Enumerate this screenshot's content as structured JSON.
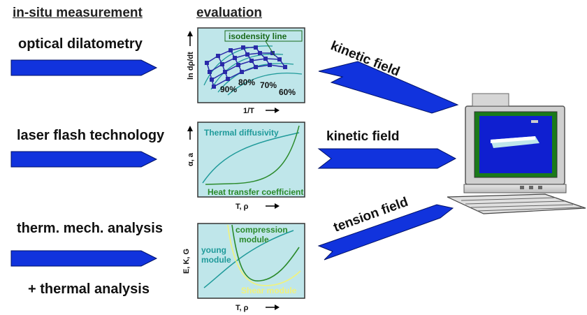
{
  "headers": {
    "measurement": "in-situ measurement",
    "evaluation": "evaluation"
  },
  "methods": [
    {
      "label": "optical dilatometry"
    },
    {
      "label": "laser flash technology"
    },
    {
      "label": "therm. mech. analysis"
    }
  ],
  "extra_method": "+ thermal analysis",
  "fields": [
    {
      "label": "kinetic field"
    },
    {
      "label": "kinetic field"
    },
    {
      "label": "tension field"
    }
  ],
  "panel1": {
    "legend": "isodensity line",
    "ylabel": "ln dρ/dt",
    "xlabel": "1/T",
    "percents": [
      "90%",
      "80%",
      "70%",
      "60%"
    ]
  },
  "panel2": {
    "ylabel": "α, a",
    "xlabel": "T, ρ",
    "curve1": "Thermal diffusivity",
    "curve2": "Heat transfer coefficient"
  },
  "panel3": {
    "ylabel": "E, K, G",
    "xlabel": "T, ρ",
    "compression": "compression",
    "compression2": "module",
    "young": "young",
    "young2": "module",
    "shear": "Shear module"
  },
  "colors": {
    "arrow_blue": "#1133dd",
    "panel_bg": "#bfe6ea",
    "teal": "#1f9a9a",
    "green": "#2b8a2b",
    "yellow": "#f2f27a"
  }
}
